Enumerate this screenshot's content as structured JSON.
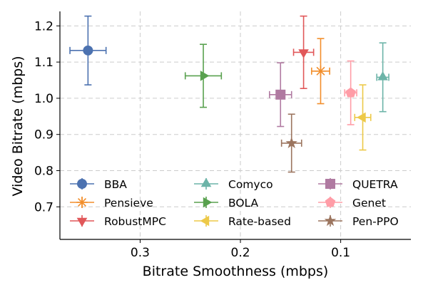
{
  "chart_data": {
    "type": "scatter",
    "xlabel": "Bitrate Smoothness (mbps)",
    "ylabel": "Video Bitrate (mbps)",
    "xlim": [
      0.38,
      0.03
    ],
    "ylim": [
      0.61,
      1.24
    ],
    "x_inverted": true,
    "xticks": [
      0.3,
      0.2,
      0.1
    ],
    "xtick_labels": [
      "0.3",
      "0.2",
      "0.1"
    ],
    "yticks": [
      0.7,
      0.8,
      0.9,
      1.0,
      1.1,
      1.2
    ],
    "ytick_labels": [
      "0.7",
      "0.8",
      "0.9",
      "1.0",
      "1.1",
      "1.2"
    ],
    "grid": true,
    "legend_position": "lower-center",
    "legend_columns": 3,
    "series": [
      {
        "name": "BBA",
        "x": 0.352,
        "y": 1.132,
        "xerr": 0.018,
        "yerr": 0.095,
        "color": "#4c72b0",
        "marker": "circle"
      },
      {
        "name": "Pensieve",
        "x": 0.12,
        "y": 1.075,
        "xerr": 0.009,
        "yerr": 0.09,
        "color": "#f28e2b",
        "marker": "asterisk"
      },
      {
        "name": "RobustMPC",
        "x": 0.137,
        "y": 1.127,
        "xerr": 0.01,
        "yerr": 0.1,
        "color": "#e15759",
        "marker": "triangle-down"
      },
      {
        "name": "Comyco",
        "x": 0.058,
        "y": 1.058,
        "xerr": 0.006,
        "yerr": 0.095,
        "color": "#6cb4a8",
        "marker": "triangle-up"
      },
      {
        "name": "BOLA",
        "x": 0.237,
        "y": 1.062,
        "xerr": 0.018,
        "yerr": 0.087,
        "color": "#59a14f",
        "marker": "triangle-right"
      },
      {
        "name": "Rate-based",
        "x": 0.078,
        "y": 0.947,
        "xerr": 0.008,
        "yerr": 0.09,
        "color": "#edc948",
        "marker": "triangle-left"
      },
      {
        "name": "QUETRA",
        "x": 0.16,
        "y": 1.01,
        "xerr": 0.011,
        "yerr": 0.088,
        "color": "#b07aa1",
        "marker": "square"
      },
      {
        "name": "Genet",
        "x": 0.09,
        "y": 1.015,
        "xerr": 0.006,
        "yerr": 0.088,
        "color": "#ff9da7",
        "marker": "pentagon"
      },
      {
        "name": "Pen-PPO",
        "x": 0.149,
        "y": 0.876,
        "xerr": 0.01,
        "yerr": 0.08,
        "color": "#9c755f",
        "marker": "star"
      }
    ]
  }
}
